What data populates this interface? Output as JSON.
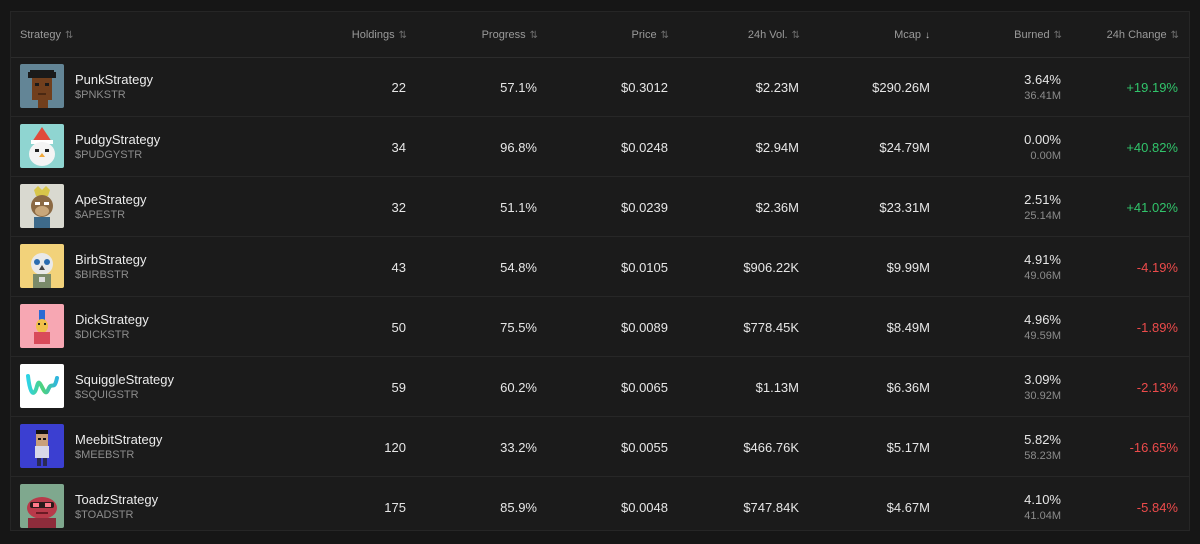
{
  "columns": {
    "strategy": "Strategy",
    "holdings": "Holdings",
    "progress": "Progress",
    "price": "Price",
    "volume": "24h Vol.",
    "mcap": "Mcap",
    "burned": "Burned",
    "change": "24h Change"
  },
  "sort_glyphs": {
    "neutral": "⇅",
    "active_desc": "↓"
  },
  "colors": {
    "positive": "#31c46b",
    "negative": "#ec4b4b"
  },
  "rows": [
    {
      "name": "PunkStrategy",
      "ticker": "$PNKSTR",
      "holdings": "22",
      "progress": "57.1%",
      "price": "$0.3012",
      "volume": "$2.23M",
      "mcap": "$290.26M",
      "burned_pct": "3.64%",
      "burned_amt": "36.41M",
      "change": "+19.19%",
      "icon": "punk-avatar-icon"
    },
    {
      "name": "PudgyStrategy",
      "ticker": "$PUDGYSTR",
      "holdings": "34",
      "progress": "96.8%",
      "price": "$0.0248",
      "volume": "$2.94M",
      "mcap": "$24.79M",
      "burned_pct": "0.00%",
      "burned_amt": "0.00M",
      "change": "+40.82%",
      "icon": "pudgy-penguin-avatar-icon"
    },
    {
      "name": "ApeStrategy",
      "ticker": "$APESTR",
      "holdings": "32",
      "progress": "51.1%",
      "price": "$0.0239",
      "volume": "$2.36M",
      "mcap": "$23.31M",
      "burned_pct": "2.51%",
      "burned_amt": "25.14M",
      "change": "+41.02%",
      "icon": "ape-avatar-icon"
    },
    {
      "name": "BirbStrategy",
      "ticker": "$BIRBSTR",
      "holdings": "43",
      "progress": "54.8%",
      "price": "$0.0105",
      "volume": "$906.22K",
      "mcap": "$9.99M",
      "burned_pct": "4.91%",
      "burned_amt": "49.06M",
      "change": "-4.19%",
      "icon": "birb-avatar-icon"
    },
    {
      "name": "DickStrategy",
      "ticker": "$DICKSTR",
      "holdings": "50",
      "progress": "75.5%",
      "price": "$0.0089",
      "volume": "$778.45K",
      "mcap": "$8.49M",
      "burned_pct": "4.96%",
      "burned_amt": "49.59M",
      "change": "-1.89%",
      "icon": "dick-avatar-icon"
    },
    {
      "name": "SquiggleStrategy",
      "ticker": "$SQUIGSTR",
      "holdings": "59",
      "progress": "60.2%",
      "price": "$0.0065",
      "volume": "$1.13M",
      "mcap": "$6.36M",
      "burned_pct": "3.09%",
      "burned_amt": "30.92M",
      "change": "-2.13%",
      "icon": "squiggle-avatar-icon"
    },
    {
      "name": "MeebitStrategy",
      "ticker": "$MEEBSTR",
      "holdings": "120",
      "progress": "33.2%",
      "price": "$0.0055",
      "volume": "$466.76K",
      "mcap": "$5.17M",
      "burned_pct": "5.82%",
      "burned_amt": "58.23M",
      "change": "-16.65%",
      "icon": "meebit-avatar-icon"
    },
    {
      "name": "ToadzStrategy",
      "ticker": "$TOADSTR",
      "holdings": "175",
      "progress": "85.9%",
      "price": "$0.0048",
      "volume": "$747.84K",
      "mcap": "$4.67M",
      "burned_pct": "4.10%",
      "burned_amt": "41.04M",
      "change": "-5.84%",
      "icon": "toadz-avatar-icon"
    }
  ]
}
